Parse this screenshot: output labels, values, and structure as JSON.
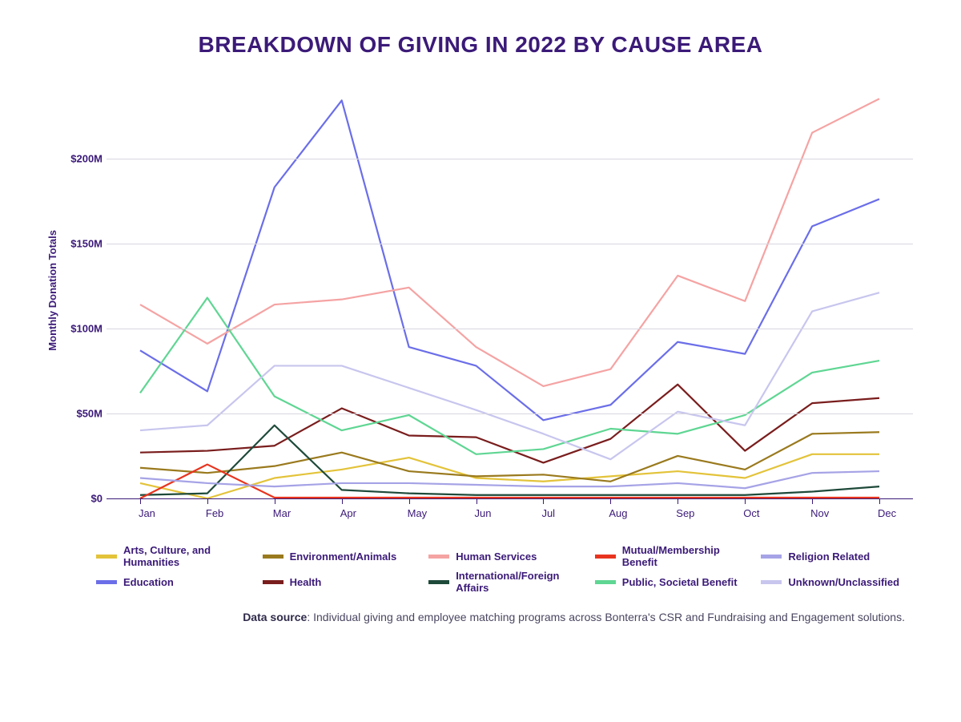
{
  "title": "BREAKDOWN OF GIVING IN 2022 BY CAUSE AREA",
  "ylabel": "Monthly Donation Totals",
  "footer_label": "Data source",
  "footer_text": ": Individual giving and employee matching programs across Bonterra's CSR and Fundraising and Engagement solutions.",
  "chart": {
    "type": "line",
    "background_color": "#ffffff",
    "grid_color": "#d8d6e0",
    "axis_color": "#3b1a78",
    "text_color": "#3b1a78",
    "line_width": 2.2,
    "ylim": [
      0,
      245
    ],
    "yticks": [
      0,
      50,
      100,
      150,
      200
    ],
    "ytick_labels": [
      "$0",
      "$50M",
      "$100M",
      "$150M",
      "$200M"
    ],
    "x_categories": [
      "Jan",
      "Feb",
      "Mar",
      "Apr",
      "May",
      "Jun",
      "Jul",
      "Aug",
      "Sep",
      "Oct",
      "Nov",
      "Dec"
    ],
    "series": {
      "arts": {
        "label": "Arts, Culture, and Humanities",
        "color": "#e3c33a",
        "values": [
          9,
          0,
          12,
          17,
          24,
          12,
          10,
          13,
          16,
          12,
          26,
          26
        ]
      },
      "edu": {
        "label": "Education",
        "color": "#6b6ee8",
        "values": [
          87,
          63,
          183,
          234,
          89,
          78,
          46,
          55,
          92,
          85,
          160,
          176
        ]
      },
      "env": {
        "label": "Environment/Animals",
        "color": "#9a7a1e",
        "values": [
          18,
          15,
          19,
          27,
          16,
          13,
          14,
          10,
          25,
          17,
          38,
          39
        ]
      },
      "health": {
        "label": "Health",
        "color": "#7a1d1d",
        "values": [
          27,
          28,
          31,
          53,
          37,
          36,
          21,
          35,
          67,
          28,
          56,
          59
        ]
      },
      "human": {
        "label": "Human Services",
        "color": "#f5a3a3",
        "values": [
          114,
          91,
          114,
          117,
          124,
          89,
          66,
          76,
          131,
          116,
          215,
          235
        ]
      },
      "intl": {
        "label": "International/Foreign Affairs",
        "color": "#1e4a3a",
        "values": [
          2,
          3,
          43,
          5,
          3,
          2,
          2,
          2,
          2,
          2,
          4,
          7
        ]
      },
      "mutual": {
        "label": "Mutual/Membership Benefit",
        "color": "#e8341f",
        "values": [
          0,
          20,
          0.5,
          0.5,
          0.5,
          0.5,
          0.5,
          0.5,
          0.5,
          0.5,
          0.5,
          0.5
        ]
      },
      "public": {
        "label": "Public, Societal Benefit",
        "color": "#5fd693",
        "values": [
          62,
          118,
          60,
          40,
          49,
          26,
          29,
          41,
          38,
          49,
          74,
          81
        ]
      },
      "religion": {
        "label": "Religion Related",
        "color": "#a6a3e6",
        "values": [
          12,
          9,
          7,
          9,
          9,
          8,
          7,
          7,
          9,
          6,
          15,
          16
        ]
      },
      "unknown": {
        "label": "Unknown/Unclassified",
        "color": "#c8c6ee",
        "values": [
          40,
          43,
          78,
          78,
          65,
          52,
          38,
          23,
          51,
          43,
          110,
          121
        ]
      }
    },
    "legend_order": [
      "arts",
      "env",
      "human",
      "mutual",
      "religion",
      "edu",
      "health",
      "intl",
      "public",
      "unknown"
    ]
  }
}
